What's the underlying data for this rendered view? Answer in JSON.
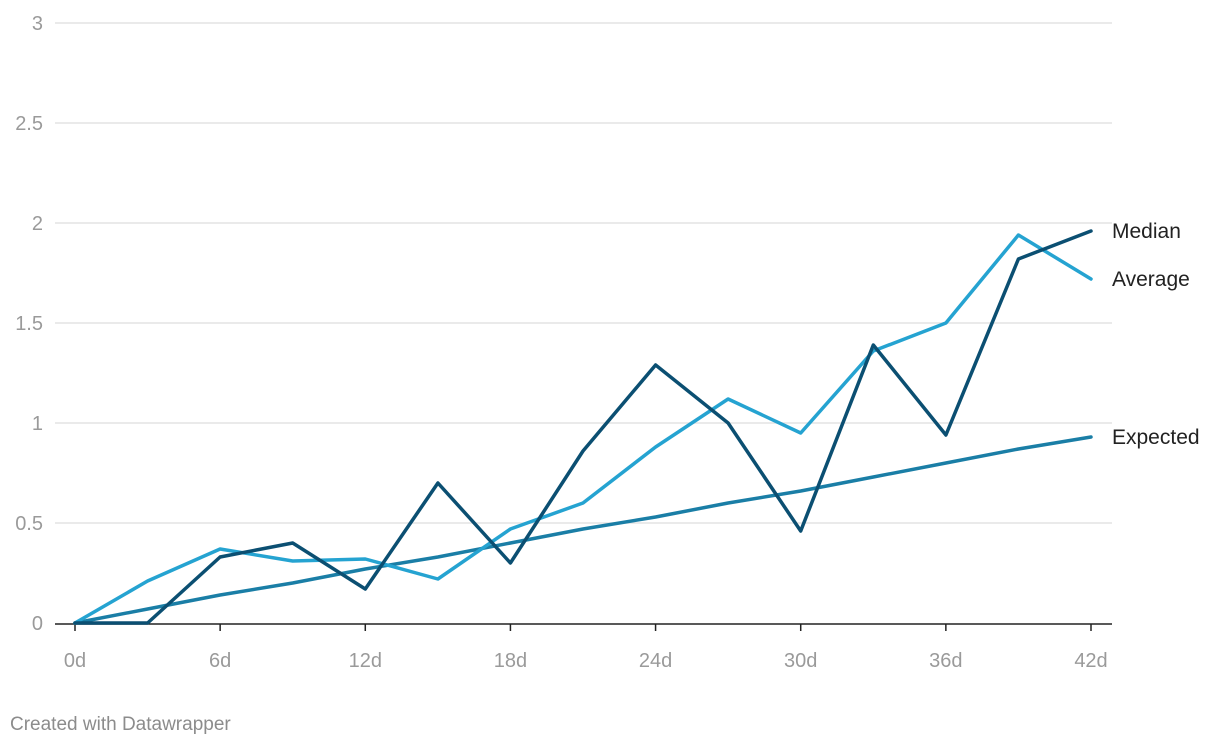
{
  "chart_data": {
    "type": "line",
    "x": [
      0,
      3,
      6,
      9,
      12,
      15,
      18,
      21,
      24,
      27,
      30,
      33,
      36,
      39,
      42
    ],
    "x_ticks": [
      0,
      6,
      12,
      18,
      24,
      30,
      36,
      42
    ],
    "x_tick_suffix": "d",
    "y_ticks": [
      0,
      0.5,
      1,
      1.5,
      2,
      2.5,
      3
    ],
    "ylim": [
      0,
      3
    ],
    "xlim": [
      0,
      42
    ],
    "grid": true,
    "legend": "direct labels at line ends",
    "series": [
      {
        "name": "Expected",
        "color": "#1a7ea6",
        "values": [
          0,
          0.07,
          0.14,
          0.2,
          0.27,
          0.33,
          0.4,
          0.47,
          0.53,
          0.6,
          0.66,
          0.73,
          0.8,
          0.87,
          0.93
        ]
      },
      {
        "name": "Average",
        "color": "#25a3d1",
        "values": [
          0,
          0.21,
          0.37,
          0.31,
          0.32,
          0.22,
          0.47,
          0.6,
          0.88,
          1.12,
          0.95,
          1.36,
          1.5,
          1.94,
          1.72
        ]
      },
      {
        "name": "Median",
        "color": "#0b4f72",
        "values": [
          0,
          0,
          0.33,
          0.4,
          0.17,
          0.7,
          0.3,
          0.86,
          1.29,
          1.0,
          0.46,
          1.39,
          0.94,
          1.82,
          1.96
        ]
      }
    ]
  },
  "footer": {
    "credit": "Created with Datawrapper"
  }
}
